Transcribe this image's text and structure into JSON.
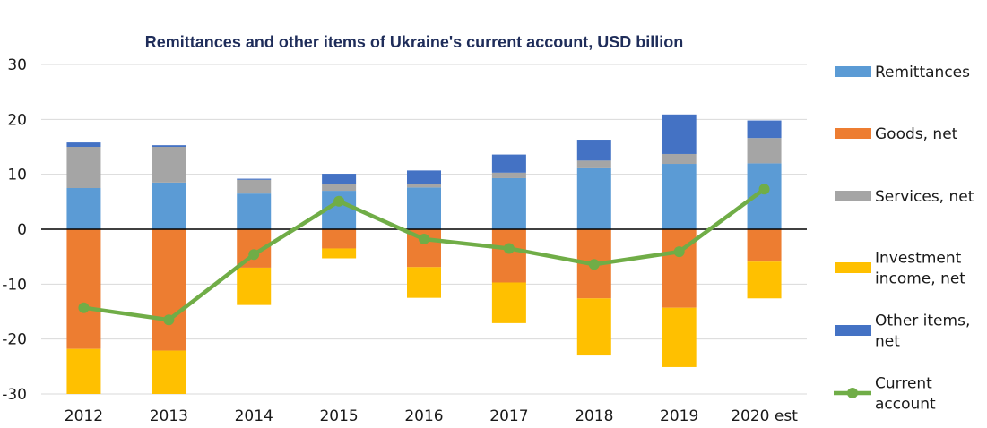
{
  "chart_data": {
    "type": "bar",
    "title": "Remittances and other items of Ukraine's current account, USD billion",
    "xlabel": "",
    "ylabel": "",
    "categories": [
      "2012",
      "2013",
      "2014",
      "2015",
      "2016",
      "2017",
      "2018",
      "2019",
      "2020 est"
    ],
    "ylim": [
      -30,
      30
    ],
    "yticks": [
      30,
      20,
      10,
      0,
      -10,
      -20,
      -30
    ],
    "grid": true,
    "legend_position": "right",
    "series": [
      {
        "name": "Remittances",
        "type": "stacked-bar",
        "color": "#5b9bd5",
        "values": [
          7.5,
          8.5,
          6.5,
          7.0,
          7.6,
          9.3,
          11.1,
          11.9,
          12.0
        ]
      },
      {
        "name": "Goods, net",
        "type": "stacked-bar",
        "color": "#ed7d31",
        "values": [
          -21.8,
          -22.1,
          -7.0,
          -3.5,
          -6.9,
          -9.7,
          -12.6,
          -14.3,
          -5.9
        ]
      },
      {
        "name": "Services, net",
        "type": "stacked-bar",
        "color": "#a5a5a5",
        "values": [
          7.5,
          6.5,
          2.5,
          1.2,
          0.6,
          1.0,
          1.4,
          1.8,
          4.6
        ]
      },
      {
        "name": "Investment income, net",
        "legend_lines": [
          "Investment",
          "income, net"
        ],
        "type": "stacked-bar",
        "color": "#ffc000",
        "values": [
          -8.5,
          -8.3,
          -6.8,
          -1.8,
          -5.6,
          -7.4,
          -10.4,
          -10.8,
          -6.7
        ]
      },
      {
        "name": "Other items, net",
        "legend_lines": [
          "Other items,",
          "net"
        ],
        "type": "stacked-bar",
        "color": "#4472c4",
        "values": [
          0.8,
          0.3,
          0.2,
          1.9,
          2.5,
          3.3,
          3.8,
          7.2,
          3.2
        ]
      },
      {
        "name": "Current account",
        "legend_lines": [
          "Current",
          "account"
        ],
        "type": "line",
        "color": "#70ad47",
        "values": [
          -14.3,
          -16.5,
          -4.6,
          5.1,
          -1.8,
          -3.5,
          -6.4,
          -4.1,
          7.3
        ]
      }
    ]
  }
}
